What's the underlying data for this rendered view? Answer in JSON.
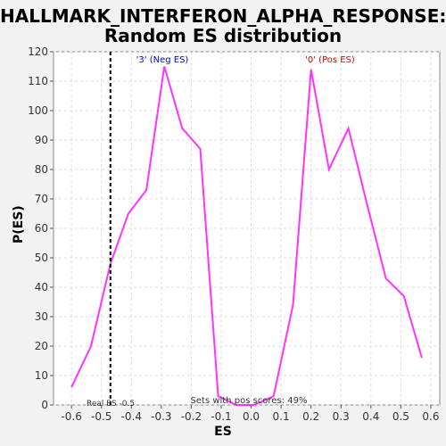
{
  "title_line1": "HALLMARK_INTERFERON_ALPHA_RESPONSE:",
  "title_line2": "Random ES distribution",
  "chart_data": {
    "type": "line",
    "xlabel": "ES",
    "ylabel": "P(ES)",
    "xlim": [
      -0.66,
      0.63
    ],
    "ylim": [
      0,
      120
    ],
    "grid": true,
    "x_ticks": [
      -0.6,
      -0.5,
      -0.4,
      -0.3,
      -0.2,
      -0.1,
      0.0,
      0.1,
      0.2,
      0.3,
      0.4,
      0.5,
      0.6
    ],
    "x_tick_labels": [
      "-0.6",
      "-0.5",
      "-0.4",
      "-0.3",
      "-0.2",
      "-0.1",
      "0.0",
      "0.1",
      "0.2",
      "0.3",
      "0.4",
      "0.5",
      "0.6"
    ],
    "y_ticks": [
      0,
      10,
      20,
      30,
      40,
      50,
      60,
      70,
      80,
      90,
      100,
      110,
      120
    ],
    "y_tick_labels": [
      "0",
      "10",
      "20",
      "30",
      "40",
      "50",
      "60",
      "70",
      "80",
      "90",
      "100",
      "110",
      "120"
    ],
    "series": [
      {
        "color": "#ff33ff",
        "x": [
          -0.6,
          -0.535,
          -0.47,
          -0.41,
          -0.35,
          -0.29,
          -0.23,
          -0.17,
          -0.11,
          -0.05,
          0.01,
          0.075,
          0.14,
          0.2,
          0.26,
          0.325,
          0.385,
          0.45,
          0.51,
          0.57
        ],
        "y": [
          6,
          20,
          48,
          65,
          73,
          115,
          94,
          87,
          3,
          0,
          0,
          3,
          34,
          114,
          80,
          94,
          69,
          43,
          37,
          16
        ]
      }
    ],
    "real_es": -0.47,
    "real_es_color": "#000000",
    "annotations": {
      "neg_label": "'3' (Neg ES)",
      "neg_color": "#0000dd",
      "pos_label": "'0' (Pos ES)",
      "pos_color": "#dd0000",
      "real_es_label": "Real ES -0.5",
      "sets_label": "Sets with pos scores: 49%"
    }
  }
}
